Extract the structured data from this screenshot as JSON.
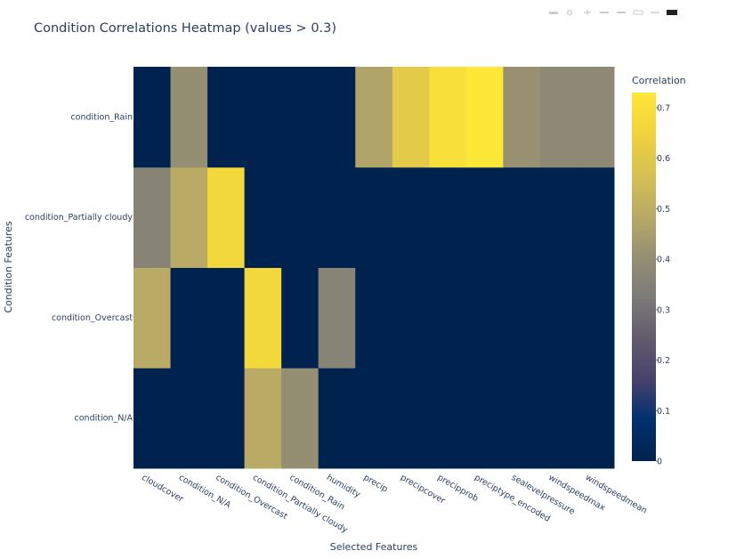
{
  "modebar": {
    "icons": [
      "camera-icon",
      "zoom-icon",
      "pan-icon",
      "zoom-in-icon",
      "zoom-out-icon",
      "autoscale-icon",
      "reset-axes-icon",
      "plotly-logo-icon"
    ]
  },
  "chart_data": {
    "type": "heatmap",
    "title": "Condition Correlations Heatmap (values > 0.3)",
    "xlabel": "Selected Features",
    "ylabel": "Condition Features",
    "x": [
      "cloudcover",
      "condition_N/A",
      "condition_Overcast",
      "condition_Partially cloudy",
      "condition_Rain",
      "humidity",
      "precip",
      "precipcover",
      "precipprob",
      "preciptype_encoded",
      "sealevelpressure",
      "windspeedmax",
      "windspeedmean"
    ],
    "y": [
      "condition_N/A",
      "condition_Overcast",
      "condition_Partially cloudy",
      "condition_Rain"
    ],
    "z": [
      [
        0,
        0,
        0,
        0.49,
        0.4,
        0,
        0,
        0,
        0,
        0,
        0,
        0,
        0
      ],
      [
        0.49,
        0,
        0,
        0.67,
        0,
        0.36,
        0,
        0,
        0,
        0,
        0,
        0,
        0
      ],
      [
        0.36,
        0.49,
        0.67,
        0,
        0,
        0,
        0,
        0,
        0,
        0,
        0,
        0,
        0
      ],
      [
        0,
        0.4,
        0,
        0,
        0,
        0,
        0.47,
        0.61,
        0.7,
        0.73,
        0.41,
        0.38,
        0.38
      ]
    ],
    "zlim": [
      0,
      0.73
    ],
    "colorscale": "Cividis",
    "colorbar": {
      "title": "Correlation",
      "ticks": [
        "0",
        "0.1",
        "0.2",
        "0.3",
        "0.4",
        "0.5",
        "0.6",
        "0.7"
      ],
      "tick_values": [
        0,
        0.1,
        0.2,
        0.3,
        0.4,
        0.5,
        0.6,
        0.7
      ]
    },
    "grid": false
  }
}
